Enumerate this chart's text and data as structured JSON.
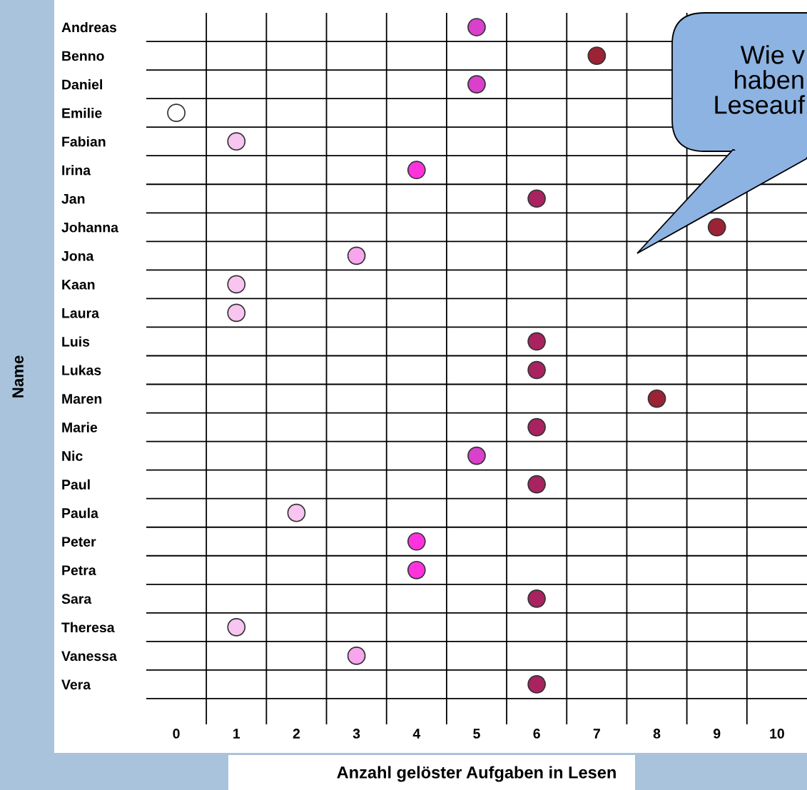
{
  "chart_data": {
    "type": "scatter",
    "orientation": "horizontal",
    "xlabel": "Anzahl gelöster Aufgaben in Lesen",
    "ylabel": "Name",
    "categories": [
      "Andreas",
      "Benno",
      "Daniel",
      "Emilie",
      "Fabian",
      "Irina",
      "Jan",
      "Johanna",
      "Jona",
      "Kaan",
      "Laura",
      "Luis",
      "Lukas",
      "Maren",
      "Marie",
      "Nic",
      "Paul",
      "Paula",
      "Peter",
      "Petra",
      "Sara",
      "Theresa",
      "Vanessa",
      "Vera"
    ],
    "values": [
      5,
      7,
      5,
      0,
      1,
      4,
      6,
      9,
      3,
      1,
      1,
      6,
      6,
      8,
      6,
      5,
      6,
      2,
      4,
      4,
      6,
      1,
      3,
      6
    ],
    "colors": [
      "#d940cc",
      "#9b2335",
      "#d940cc",
      "#ffffff",
      "#f8c4f0",
      "#ff33dd",
      "#a8235f",
      "#9b2335",
      "#f7a6ee",
      "#f8c4f0",
      "#f8c4f0",
      "#a8235f",
      "#a8235f",
      "#9b2335",
      "#a8235f",
      "#d940cc",
      "#a8235f",
      "#f8c4f0",
      "#ff33dd",
      "#ff33dd",
      "#a8235f",
      "#f8c4f0",
      "#f7a6ee",
      "#a8235f"
    ],
    "xlim": [
      -0.5,
      10.5
    ],
    "xticks": [
      0,
      1,
      2,
      3,
      4,
      5,
      6,
      7,
      8,
      9,
      10
    ],
    "grid": true,
    "marker": "circle",
    "annotations": [
      "Wie v\nhaben\nLeseauf"
    ]
  }
}
